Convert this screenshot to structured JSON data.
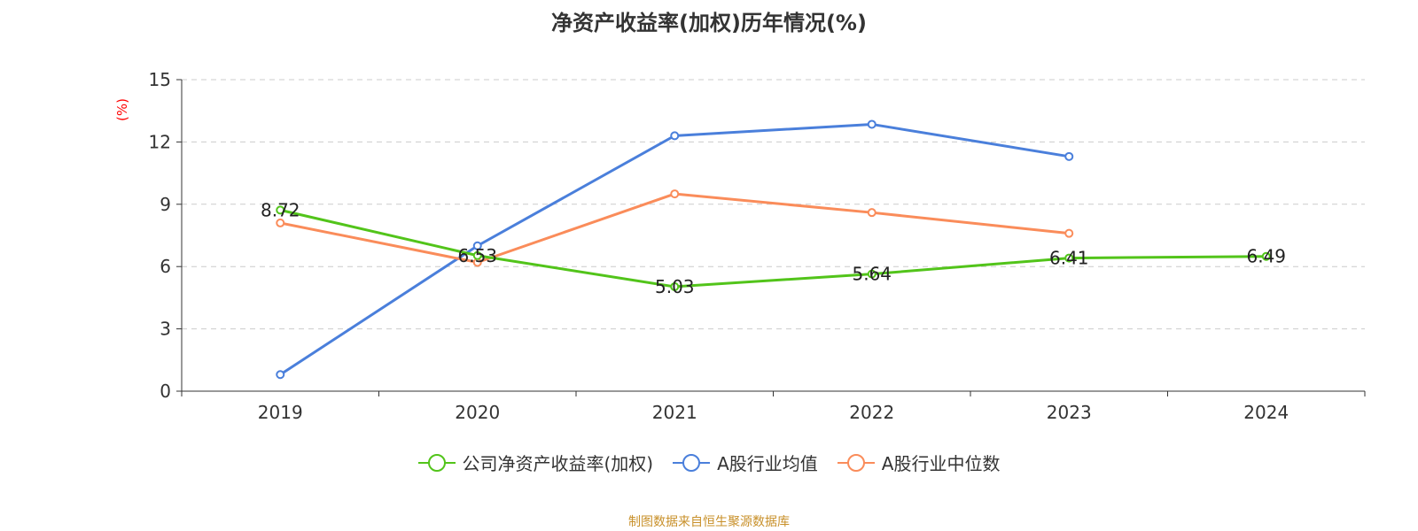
{
  "chart_data": {
    "type": "line",
    "title": "净资产收益率(加权)历年情况(%)",
    "ylabel": "(%)",
    "xlabel": "",
    "categories": [
      "2019",
      "2020",
      "2021",
      "2022",
      "2023",
      "2024"
    ],
    "ylim": [
      0,
      15
    ],
    "yticks": [
      "0",
      "3",
      "6",
      "9",
      "12",
      "15"
    ],
    "grid": true,
    "legend_position": "bottom",
    "series": [
      {
        "name": "公司净资产收益率(加权)",
        "color": "#52c41a",
        "values": [
          8.72,
          6.53,
          5.03,
          5.64,
          6.41,
          6.49
        ],
        "labels": [
          "8.72",
          "6.53",
          "5.03",
          "5.64",
          "6.41",
          "6.49"
        ]
      },
      {
        "name": "A股行业均值",
        "color": "#4a7fdb",
        "values": [
          0.8,
          7.0,
          12.3,
          12.85,
          11.3,
          null
        ]
      },
      {
        "name": "A股行业中位数",
        "color": "#fa8c5a",
        "values": [
          8.1,
          6.2,
          9.5,
          8.6,
          7.6,
          null
        ]
      }
    ]
  },
  "footer": {
    "source": "制图数据来自恒生聚源数据库",
    "source_color": "#c8902a"
  },
  "colors": {
    "ylabel": "#ff0000",
    "axis": "#333333",
    "grid": "#cccccc"
  }
}
